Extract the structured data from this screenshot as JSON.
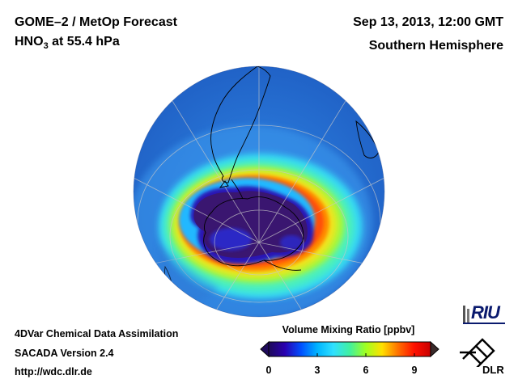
{
  "header": {
    "title": "GOME–2 / MetOp Forecast",
    "species_main": "HNO",
    "species_sub": "3",
    "species_rest": " at 55.4 hPa",
    "datetime": "Sep 13, 2013, 12:00 GMT",
    "region": "Southern Hemisphere"
  },
  "footer": {
    "line1": "4DVar Chemical Data Assimilation",
    "line2": "SACADA Version 2.4",
    "line3": "http://wdc.dlr.de"
  },
  "colorbar": {
    "title": "Volume Mixing Ratio [ppbv]",
    "ticks": [
      "0",
      "3",
      "6",
      "9"
    ],
    "tick_values": [
      0,
      3,
      6,
      9
    ],
    "min": 0,
    "max": 10,
    "colors": [
      "#1e0a5a",
      "#2a00b0",
      "#0050ff",
      "#00b4ff",
      "#30e0ff",
      "#40f0a0",
      "#a0ff20",
      "#ffe000",
      "#ff7000",
      "#ff1000",
      "#c80000"
    ]
  },
  "logos": {
    "riu": "RIU",
    "dlr": "DLR"
  },
  "map": {
    "projection": "orthographic, south polar view",
    "palette": {
      "background_field": "#2b7bd8",
      "outer_ring": "#30d8f0",
      "collar_yellow": "#f0e020",
      "collar_orange": "#ff8a00",
      "vortex_core": "#3a1670",
      "vortex_inner": "#2a10a0",
      "coastline": "#000000",
      "grid": "#c8c8c8"
    }
  }
}
